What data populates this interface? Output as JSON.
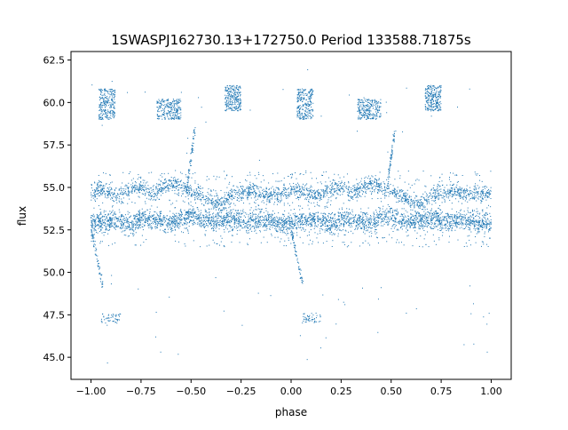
{
  "chart_data": {
    "type": "scatter",
    "title": "1SWASPJ162730.13+172750.0 Period 133588.71875s",
    "xlabel": "phase",
    "ylabel": "flux",
    "xlim": [
      -1.1,
      1.1
    ],
    "ylim": [
      43.7,
      63.0
    ],
    "x_ticks": [
      -1.0,
      -0.75,
      -0.5,
      -0.25,
      0.0,
      0.25,
      0.5,
      0.75,
      1.0
    ],
    "x_tick_labels": [
      "−1.00",
      "−0.75",
      "−0.50",
      "−0.25",
      "0.00",
      "0.25",
      "0.50",
      "0.75",
      "1.00"
    ],
    "y_ticks": [
      45.0,
      47.5,
      50.0,
      52.5,
      55.0,
      57.5,
      60.0,
      62.5
    ],
    "y_tick_labels": [
      "45.0",
      "47.5",
      "50.0",
      "52.5",
      "55.0",
      "57.5",
      "60.0",
      "62.5"
    ],
    "grid": false,
    "marker_color": "#1f77b4",
    "series": [
      {
        "x": [
          -1.0,
          -0.95,
          -0.9,
          -0.85,
          -0.8,
          -0.75,
          -0.7,
          -0.65,
          -0.6,
          -0.55,
          -0.5,
          -0.45,
          -0.4,
          -0.35,
          -0.3,
          -0.25,
          -0.2,
          -0.15,
          -0.1,
          -0.05,
          0.0,
          0.05,
          0.1,
          0.15,
          0.2,
          0.25,
          0.3,
          0.35,
          0.4,
          0.45,
          0.5,
          0.55,
          0.6,
          0.65,
          0.7,
          0.75,
          0.8,
          0.85,
          0.9,
          0.95,
          1.0
        ],
        "y_upper_band": [
          54.7,
          54.9,
          54.6,
          54.5,
          54.9,
          55.0,
          54.6,
          55.0,
          55.2,
          55.0,
          54.8,
          54.5,
          54.2,
          54.0,
          54.6,
          54.7,
          54.8,
          54.6,
          54.6,
          54.6,
          54.7,
          54.8,
          54.6,
          54.5,
          54.9,
          55.0,
          54.6,
          55.0,
          55.2,
          55.0,
          54.8,
          54.5,
          54.2,
          54.0,
          54.6,
          54.7,
          54.8,
          54.6,
          54.6,
          54.6,
          54.7
        ],
        "y_lower_band": [
          52.9,
          53.0,
          53.1,
          53.0,
          52.8,
          53.2,
          53.1,
          53.0,
          52.9,
          53.2,
          53.3,
          53.1,
          53.0,
          53.1,
          53.2,
          53.1,
          53.0,
          53.1,
          53.0,
          52.9,
          52.9,
          53.0,
          53.1,
          53.0,
          52.8,
          53.2,
          53.1,
          53.0,
          52.9,
          53.2,
          53.3,
          53.1,
          53.0,
          53.1,
          53.2,
          53.1,
          53.0,
          53.1,
          53.0,
          52.9,
          52.9
        ]
      }
    ],
    "clusters": [
      {
        "x": [
          -0.96,
          -0.88
        ],
        "y": [
          59.0,
          60.8
        ]
      },
      {
        "x": [
          -0.67,
          -0.55
        ],
        "y": [
          59.0,
          60.2
        ]
      },
      {
        "x": [
          -0.33,
          -0.25
        ],
        "y": [
          59.5,
          61.0
        ]
      },
      {
        "x": [
          0.03,
          0.11
        ],
        "y": [
          59.0,
          60.8
        ]
      },
      {
        "x": [
          0.33,
          0.45
        ],
        "y": [
          59.0,
          60.2
        ]
      },
      {
        "x": [
          0.67,
          0.75
        ],
        "y": [
          59.5,
          61.0
        ]
      },
      {
        "x": [
          -0.95,
          -0.85
        ],
        "y": [
          47.0,
          47.6
        ]
      },
      {
        "x": [
          0.05,
          0.15
        ],
        "y": [
          47.0,
          47.6
        ]
      }
    ],
    "dips": [
      {
        "x": [
          -1.0,
          -0.94
        ],
        "y": [
          52.5,
          49.2
        ]
      },
      {
        "x": [
          0.0,
          0.06
        ],
        "y": [
          52.5,
          49.2
        ]
      },
      {
        "x": [
          -0.52,
          -0.48
        ],
        "y": [
          55.0,
          58.5
        ]
      },
      {
        "x": [
          0.48,
          0.52
        ],
        "y": [
          55.0,
          58.5
        ]
      }
    ]
  }
}
